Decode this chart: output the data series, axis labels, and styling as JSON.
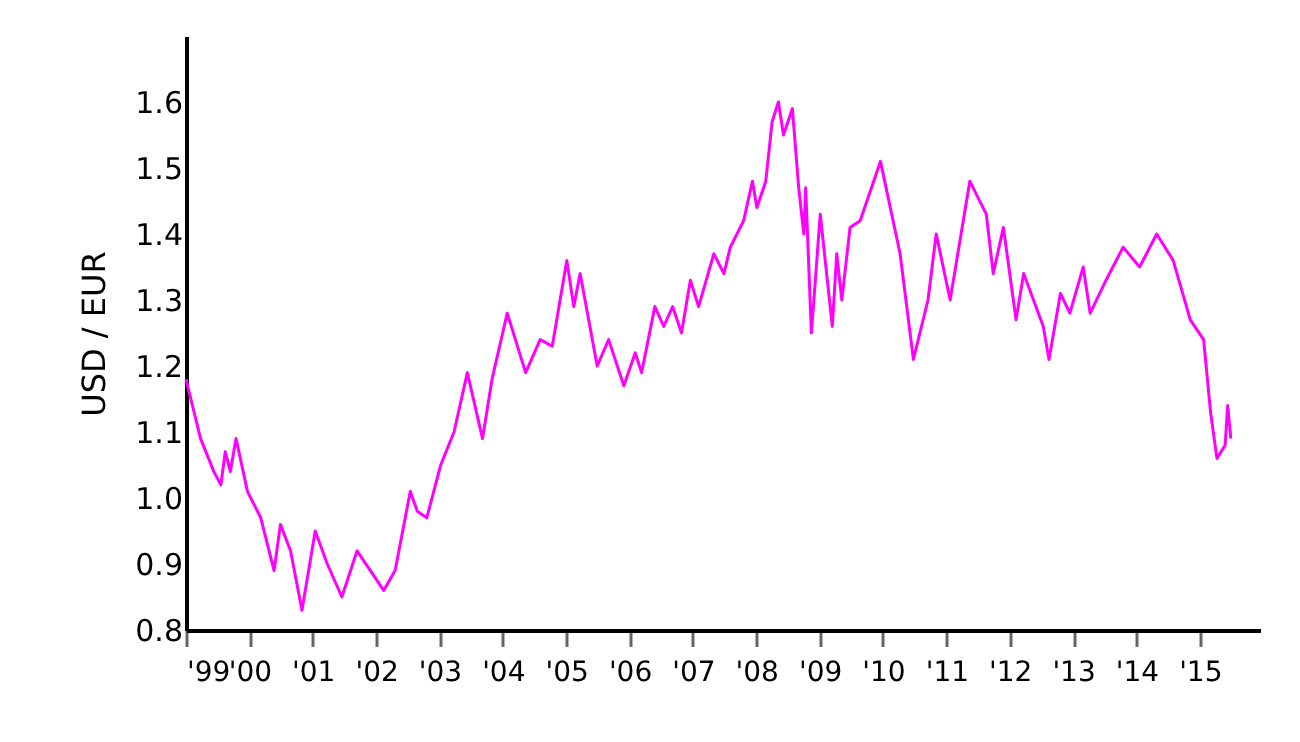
{
  "chart_data": {
    "type": "line",
    "ylabel": "USD / EUR",
    "series": [
      {
        "color": "#ff00ff",
        "x": [
          1999.0,
          1999.23,
          1999.44,
          1999.55,
          1999.62,
          1999.7,
          1999.79,
          1999.97,
          2000.18,
          2000.39,
          2000.49,
          2000.65,
          2000.83,
          2001.04,
          2001.23,
          2001.46,
          2001.7,
          2001.91,
          2002.12,
          2002.3,
          2002.54,
          2002.65,
          2002.8,
          2003.02,
          2003.23,
          2003.44,
          2003.68,
          2003.83,
          2004.07,
          2004.36,
          2004.59,
          2004.78,
          2005.01,
          2005.12,
          2005.22,
          2005.49,
          2005.67,
          2005.91,
          2006.09,
          2006.19,
          2006.4,
          2006.54,
          2006.68,
          2006.82,
          2006.96,
          2007.09,
          2007.33,
          2007.49,
          2007.59,
          2007.8,
          2007.94,
          2008.01,
          2008.15,
          2008.25,
          2008.35,
          2008.43,
          2008.57,
          2008.67,
          2008.75,
          2008.78,
          2008.87,
          2009.01,
          2009.2,
          2009.27,
          2009.35,
          2009.48,
          2009.64,
          2009.96,
          2010.27,
          2010.48,
          2010.71,
          2010.84,
          2011.06,
          2011.37,
          2011.63,
          2011.74,
          2011.9,
          2012.1,
          2012.22,
          2012.53,
          2012.62,
          2012.8,
          2012.95,
          2013.16,
          2013.27,
          2013.52,
          2013.79,
          2014.05,
          2014.32,
          2014.58,
          2014.85,
          2015.06,
          2015.17,
          2015.27,
          2015.4,
          2015.44,
          2015.49
        ],
        "values": [
          1.18,
          1.09,
          1.04,
          1.02,
          1.07,
          1.04,
          1.09,
          1.01,
          0.97,
          0.89,
          0.96,
          0.92,
          0.83,
          0.95,
          0.9,
          0.85,
          0.92,
          0.89,
          0.86,
          0.89,
          1.01,
          0.98,
          0.97,
          1.05,
          1.1,
          1.19,
          1.09,
          1.18,
          1.28,
          1.19,
          1.24,
          1.23,
          1.36,
          1.29,
          1.34,
          1.2,
          1.24,
          1.17,
          1.22,
          1.19,
          1.29,
          1.26,
          1.29,
          1.25,
          1.33,
          1.29,
          1.37,
          1.34,
          1.38,
          1.42,
          1.48,
          1.44,
          1.48,
          1.57,
          1.6,
          1.55,
          1.59,
          1.47,
          1.4,
          1.47,
          1.25,
          1.43,
          1.26,
          1.37,
          1.3,
          1.41,
          1.42,
          1.51,
          1.37,
          1.21,
          1.3,
          1.4,
          1.3,
          1.48,
          1.43,
          1.34,
          1.41,
          1.27,
          1.34,
          1.26,
          1.21,
          1.31,
          1.28,
          1.35,
          1.28,
          1.33,
          1.38,
          1.35,
          1.4,
          1.36,
          1.27,
          1.24,
          1.13,
          1.06,
          1.08,
          1.14,
          1.09
        ]
      }
    ],
    "xlim": [
      1999,
      2015.95
    ],
    "xticks": [
      {
        "value": 1999,
        "label": "'99"
      },
      {
        "value": 2000,
        "label": "'00"
      },
      {
        "value": 2001,
        "label": "'01"
      },
      {
        "value": 2002,
        "label": "'02"
      },
      {
        "value": 2003,
        "label": "'03"
      },
      {
        "value": 2004,
        "label": "'04"
      },
      {
        "value": 2005,
        "label": "'05"
      },
      {
        "value": 2006,
        "label": "'06"
      },
      {
        "value": 2007,
        "label": "'07"
      },
      {
        "value": 2008,
        "label": "'08"
      },
      {
        "value": 2009,
        "label": "'09"
      },
      {
        "value": 2010,
        "label": "'10"
      },
      {
        "value": 2011,
        "label": "'11"
      },
      {
        "value": 2012,
        "label": "'12"
      },
      {
        "value": 2013,
        "label": "'13"
      },
      {
        "value": 2014,
        "label": "'14"
      },
      {
        "value": 2015,
        "label": "'15"
      }
    ],
    "ylim": [
      0.8,
      1.7
    ],
    "yticks": [
      {
        "value": 0.8,
        "label": "0.8"
      },
      {
        "value": 0.9,
        "label": "0.9"
      },
      {
        "value": 1.0,
        "label": "1.0"
      },
      {
        "value": 1.1,
        "label": "1.1"
      },
      {
        "value": 1.2,
        "label": "1.2"
      },
      {
        "value": 1.3,
        "label": "1.3"
      },
      {
        "value": 1.4,
        "label": "1.4"
      },
      {
        "value": 1.5,
        "label": "1.5"
      },
      {
        "value": 1.6,
        "label": "1.6"
      }
    ],
    "marker": "none",
    "line_style": "solid"
  }
}
